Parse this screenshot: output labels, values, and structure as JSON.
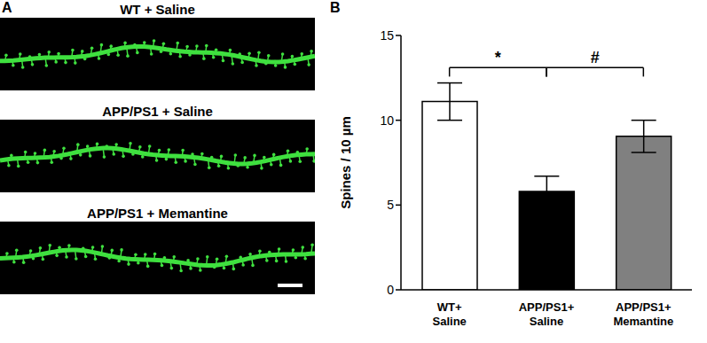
{
  "panel_a": {
    "label": "A",
    "images": [
      "WT + Saline",
      "APP/PS1 + Saline",
      "APP/PS1 + Memantine"
    ]
  },
  "chart_data": {
    "type": "bar",
    "panel_label": "B",
    "categories": [
      "WT+ Saline",
      "APP/PS1+ Saline",
      "APP/PS1+ Memantine"
    ],
    "values": [
      11.1,
      5.8,
      9.05
    ],
    "errors": [
      1.1,
      0.9,
      0.95
    ],
    "colors": [
      "#ffffff",
      "#000000",
      "#808080"
    ],
    "y_label": "Spines / 10 µm",
    "ylim": [
      0,
      15
    ],
    "yticks": [
      0,
      5,
      10,
      15
    ],
    "annotations": [
      {
        "text": "*",
        "from": "WT+ Saline",
        "to": "APP/PS1+ Saline"
      },
      {
        "text": "#",
        "from": "APP/PS1+ Saline",
        "to": "APP/PS1+ Memantine"
      }
    ]
  }
}
